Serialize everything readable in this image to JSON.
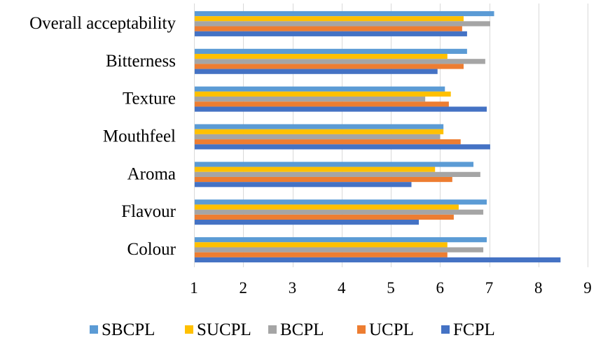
{
  "chart_data": {
    "type": "bar",
    "orientation": "horizontal",
    "title": "",
    "xlabel": "",
    "ylabel": "",
    "xlim": [
      1,
      9
    ],
    "x_ticks": [
      1,
      2,
      3,
      4,
      5,
      6,
      7,
      8,
      9
    ],
    "grid": "vertical",
    "legend_position": "bottom",
    "categories": [
      "Overall acceptability",
      "Bitterness",
      "Texture",
      "Mouthfeel",
      "Aroma",
      "Flavour",
      "Colour"
    ],
    "series": [
      {
        "name": "SBCPL",
        "color": "#5b9bd5",
        "values": [
          7.1,
          6.55,
          6.1,
          6.07,
          6.68,
          6.95,
          6.95
        ]
      },
      {
        "name": "SUCPL",
        "color": "#ffc000",
        "values": [
          6.48,
          6.15,
          6.22,
          6.07,
          5.9,
          6.38,
          6.15
        ]
      },
      {
        "name": "BCPL",
        "color": "#a5a5a5",
        "values": [
          7.02,
          6.92,
          5.7,
          6.0,
          6.82,
          6.88,
          6.88
        ]
      },
      {
        "name": "UCPL",
        "color": "#ed7d31",
        "values": [
          6.45,
          6.48,
          6.18,
          6.42,
          6.25,
          6.28,
          6.15
        ]
      },
      {
        "name": "FCPL",
        "color": "#4472c4",
        "values": [
          6.55,
          5.95,
          6.95,
          7.02,
          5.42,
          5.57,
          8.45
        ]
      }
    ]
  }
}
